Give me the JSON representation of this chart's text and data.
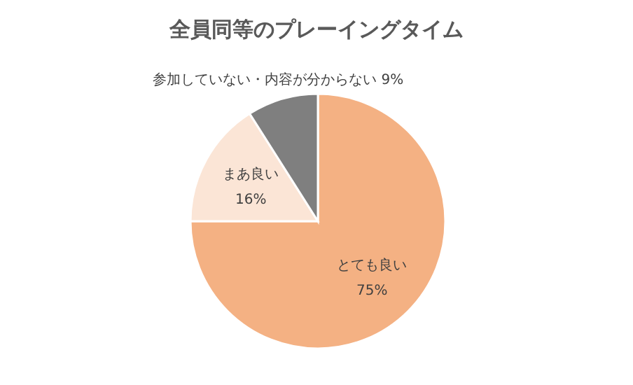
{
  "chart_data": {
    "type": "pie",
    "title": "全員同等のプレーイングタイム",
    "categories": [
      "とても良い",
      "まあ良い",
      "参加していない・内容が分からない"
    ],
    "values": [
      75,
      16,
      9
    ],
    "value_labels": [
      "75%",
      "16%",
      "9%"
    ],
    "colors": [
      "#f4b183",
      "#fbe5d6",
      "#7f7f7f"
    ],
    "legend": false
  }
}
